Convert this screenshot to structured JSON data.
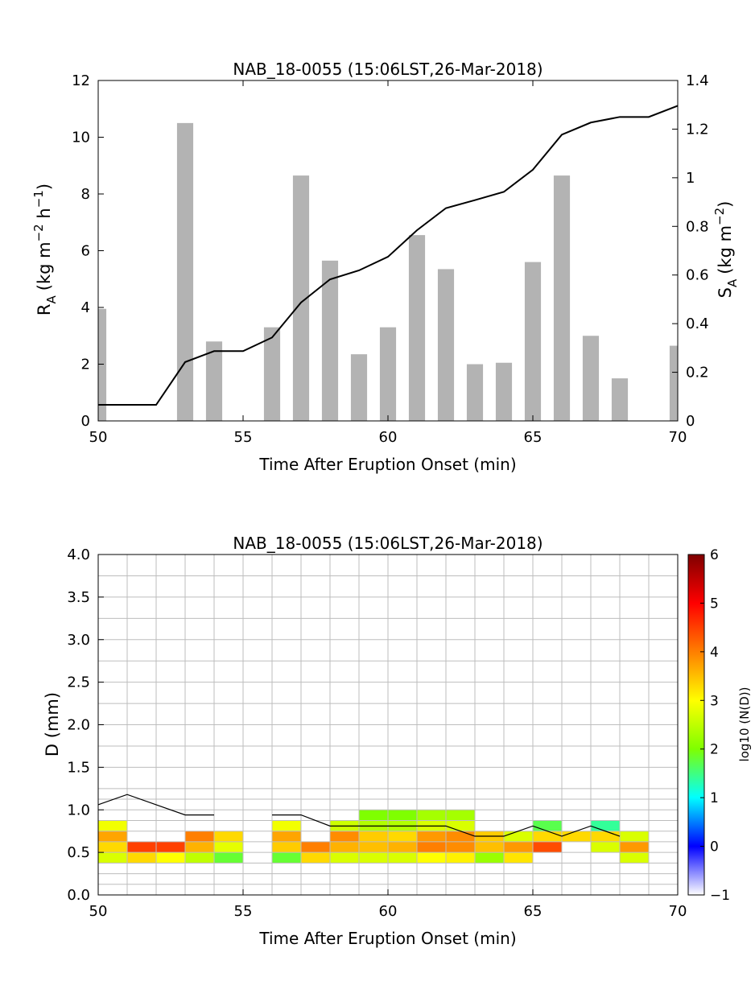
{
  "chart_data": [
    {
      "type": "bar",
      "title": "NAB_18-0055 (15:06LST,26-Mar-2018)",
      "xlabel": "Time After Eruption Onset (min)",
      "ylabel": {
        "main": "R",
        "sub": "A",
        "units": "(kg m",
        "exp1": "−2",
        "mid": " h",
        "exp2": "−1",
        "close": ")"
      },
      "y2label": {
        "main": "S",
        "sub": "A",
        "units": "(kg m",
        "exp1": "−2",
        "close": ")"
      },
      "xlim": [
        50,
        70
      ],
      "ylim": [
        0,
        12
      ],
      "y2lim": [
        0,
        1.4
      ],
      "xticks": [
        "50",
        "55",
        "60",
        "65",
        "70"
      ],
      "yticks": [
        "0",
        "2",
        "4",
        "6",
        "8",
        "10",
        "12"
      ],
      "y2ticks": [
        "0",
        "0.2",
        "0.4",
        "0.6",
        "0.8",
        "1",
        "1.2",
        "1.4"
      ],
      "bar_color": "#b3b3b3",
      "line_color": "#000000",
      "series": [
        {
          "kind": "bar",
          "axis": "left",
          "x": [
            50,
            53,
            54,
            56,
            57,
            58,
            59,
            60,
            61,
            62,
            63,
            64,
            65,
            66,
            67,
            68,
            70
          ],
          "values": [
            3.95,
            10.5,
            2.8,
            3.3,
            8.65,
            5.65,
            2.35,
            3.3,
            6.55,
            5.35,
            2.0,
            2.05,
            5.6,
            8.65,
            3.0,
            1.5,
            2.65
          ]
        },
        {
          "kind": "line",
          "axis": "right",
          "x": [
            50,
            51,
            52,
            53,
            54,
            55,
            56,
            57,
            58,
            59,
            60,
            61,
            62,
            63,
            64,
            65,
            66,
            67,
            68,
            69,
            70
          ],
          "values": [
            0.066,
            0.066,
            0.066,
            0.242,
            0.287,
            0.287,
            0.343,
            0.487,
            0.582,
            0.619,
            0.675,
            0.784,
            0.875,
            0.908,
            0.942,
            1.033,
            1.177,
            1.227,
            1.25,
            1.25,
            1.296
          ]
        }
      ]
    },
    {
      "type": "heatmap",
      "title": "NAB_18-0055 (15:06LST,26-Mar-2018)",
      "xlabel": "Time After Eruption Onset (min)",
      "ylabel": "D (mm)",
      "colorbar_label": "log10 (N(D))",
      "xlim": [
        50,
        70
      ],
      "ylim": [
        0,
        4
      ],
      "xticks": [
        "50",
        "55",
        "60",
        "65",
        "70"
      ],
      "yticks": [
        "0.0",
        "0.5",
        "1.0",
        "1.5",
        "2.0",
        "2.5",
        "3.0",
        "3.5",
        "4.0"
      ],
      "colorbar_ticks": [
        "6",
        "5",
        "4",
        "3",
        "2",
        "1",
        "0",
        "−1"
      ],
      "clim": [
        -1,
        6
      ],
      "x_edges": [
        50,
        51,
        52,
        53,
        54,
        55,
        56,
        57,
        58,
        59,
        60,
        61,
        62,
        63,
        64,
        65,
        66,
        67,
        68,
        69,
        70
      ],
      "d_edges": [
        0,
        0.125,
        0.25,
        0.375,
        0.5,
        0.625,
        0.75,
        0.875,
        1.0,
        1.125,
        1.25,
        1.5,
        1.75,
        2.0,
        2.25,
        2.5,
        2.75,
        3.0,
        3.25,
        3.5,
        3.75,
        4.0
      ],
      "cells": [
        [
          50,
          3,
          2.7
        ],
        [
          50,
          4,
          3.3
        ],
        [
          50,
          5,
          3.7
        ],
        [
          50,
          6,
          2.9
        ],
        [
          51,
          3,
          3.3
        ],
        [
          51,
          4,
          4.5
        ],
        [
          52,
          3,
          3.0
        ],
        [
          52,
          4,
          4.5
        ],
        [
          53,
          3,
          2.5
        ],
        [
          53,
          4,
          3.6
        ],
        [
          53,
          5,
          4.0
        ],
        [
          54,
          3,
          1.8
        ],
        [
          54,
          4,
          2.8
        ],
        [
          54,
          5,
          3.3
        ],
        [
          56,
          3,
          1.8
        ],
        [
          56,
          4,
          3.4
        ],
        [
          56,
          5,
          3.7
        ],
        [
          56,
          6,
          2.9
        ],
        [
          57,
          3,
          3.3
        ],
        [
          57,
          4,
          4.0
        ],
        [
          58,
          3,
          2.7
        ],
        [
          58,
          4,
          3.6
        ],
        [
          58,
          5,
          3.9
        ],
        [
          58,
          6,
          2.6
        ],
        [
          59,
          3,
          2.7
        ],
        [
          59,
          4,
          3.5
        ],
        [
          59,
          5,
          3.4
        ],
        [
          59,
          6,
          2.4
        ],
        [
          59,
          7,
          2.0
        ],
        [
          60,
          3,
          2.7
        ],
        [
          60,
          4,
          3.6
        ],
        [
          60,
          5,
          3.3
        ],
        [
          60,
          6,
          2.4
        ],
        [
          60,
          7,
          2.0
        ],
        [
          61,
          3,
          3.0
        ],
        [
          61,
          4,
          4.0
        ],
        [
          61,
          5,
          3.8
        ],
        [
          61,
          6,
          2.7
        ],
        [
          61,
          7,
          2.3
        ],
        [
          62,
          3,
          3.1
        ],
        [
          62,
          4,
          3.9
        ],
        [
          62,
          5,
          3.9
        ],
        [
          62,
          6,
          2.7
        ],
        [
          62,
          7,
          2.3
        ],
        [
          63,
          3,
          2.2
        ],
        [
          63,
          4,
          3.5
        ],
        [
          63,
          5,
          3.4
        ],
        [
          64,
          3,
          3.2
        ],
        [
          64,
          4,
          3.8
        ],
        [
          64,
          5,
          2.7
        ],
        [
          65,
          4,
          4.4
        ],
        [
          65,
          5,
          3.3
        ],
        [
          65,
          6,
          1.7
        ],
        [
          66,
          5,
          3.3
        ],
        [
          67,
          4,
          2.7
        ],
        [
          67,
          5,
          3.3
        ],
        [
          67,
          6,
          1.4
        ],
        [
          68,
          3,
          2.7
        ],
        [
          68,
          4,
          3.8
        ],
        [
          68,
          5,
          2.7
        ]
      ],
      "dmax_line": {
        "x": [
          50,
          51,
          52,
          53,
          54,
          null,
          56,
          57,
          58,
          59,
          60,
          61,
          62,
          63,
          64,
          65,
          66,
          67,
          68
        ],
        "y": [
          1.06,
          1.18,
          1.06,
          0.94,
          0.94,
          null,
          0.94,
          0.94,
          0.81,
          0.81,
          0.81,
          0.81,
          0.81,
          0.69,
          0.69,
          0.81,
          0.69,
          0.81,
          0.69
        ]
      }
    }
  ]
}
